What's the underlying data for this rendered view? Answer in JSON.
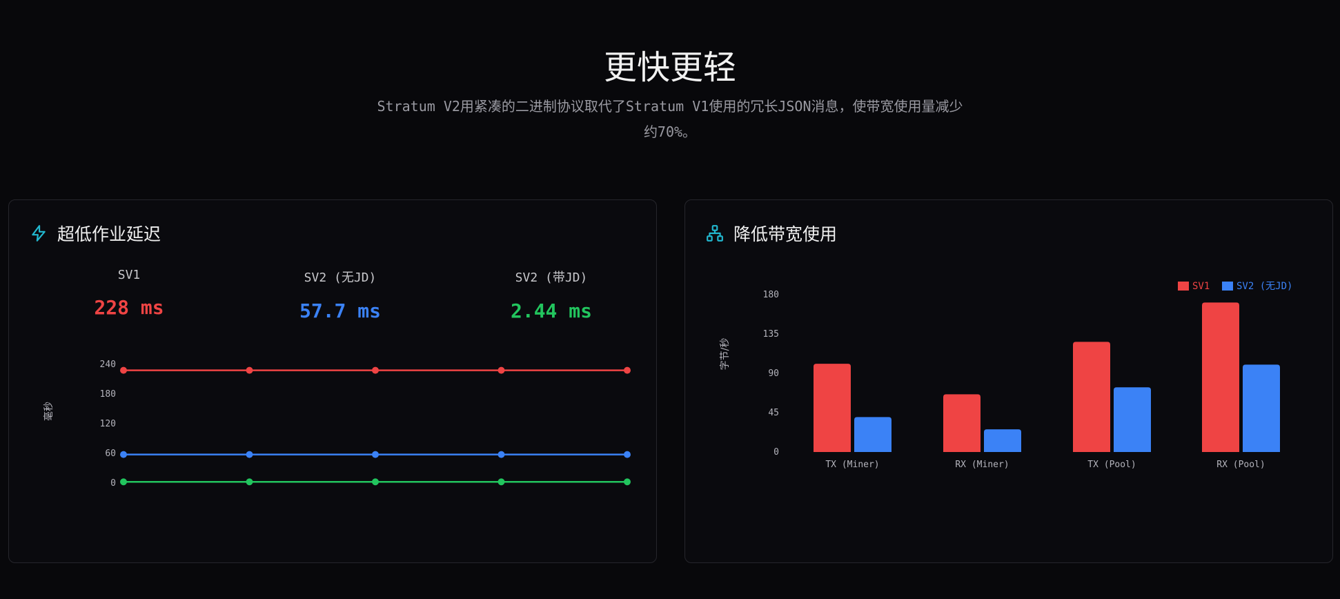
{
  "hero": {
    "title": "更快更轻",
    "subtitle": "Stratum V2用紧凑的二进制协议取代了Stratum V1使用的冗长JSON消息，使带宽使用量减少约70%。"
  },
  "latency_card": {
    "title": "超低作业延迟",
    "icon": "lightning-icon",
    "stats": [
      {
        "label": "SV1",
        "value": "228 ms",
        "color": "#ef4444"
      },
      {
        "label": "SV2 (无JD)",
        "value": "57.7 ms",
        "color": "#3b82f6"
      },
      {
        "label": "SV2 (带JD)",
        "value": "2.44 ms",
        "color": "#22c55e"
      }
    ]
  },
  "bandwidth_card": {
    "title": "降低带宽使用",
    "icon": "network-icon"
  },
  "chart_data": [
    {
      "type": "line",
      "xlabel": "",
      "ylabel": "毫秒",
      "ylim": [
        0,
        240
      ],
      "yticks": [
        0,
        60,
        120,
        180,
        240
      ],
      "x": [
        1,
        2,
        3,
        4,
        5
      ],
      "series": [
        {
          "values": [
            228,
            228,
            228,
            228,
            228
          ],
          "color": "#ef4444"
        },
        {
          "values": [
            57.7,
            57.7,
            57.7,
            57.7,
            57.7
          ],
          "color": "#3b82f6"
        },
        {
          "values": [
            2.44,
            2.44,
            2.44,
            2.44,
            2.44
          ],
          "color": "#22c55e"
        }
      ],
      "grid": false
    },
    {
      "type": "bar",
      "xlabel": "",
      "ylabel": "字节/秒",
      "ylim": [
        0,
        180
      ],
      "yticks": [
        0,
        45,
        90,
        135,
        180
      ],
      "categories": [
        "TX (Miner)",
        "RX (Miner)",
        "TX (Pool)",
        "RX (Pool)"
      ],
      "series": [
        {
          "name": "SV1",
          "values": [
            101,
            66,
            126,
            171
          ],
          "color": "#ef4444"
        },
        {
          "name": "SV2 (无JD)",
          "values": [
            40,
            26,
            74,
            100
          ],
          "color": "#3b82f6"
        }
      ],
      "legend": "top-right",
      "grid": false
    }
  ]
}
